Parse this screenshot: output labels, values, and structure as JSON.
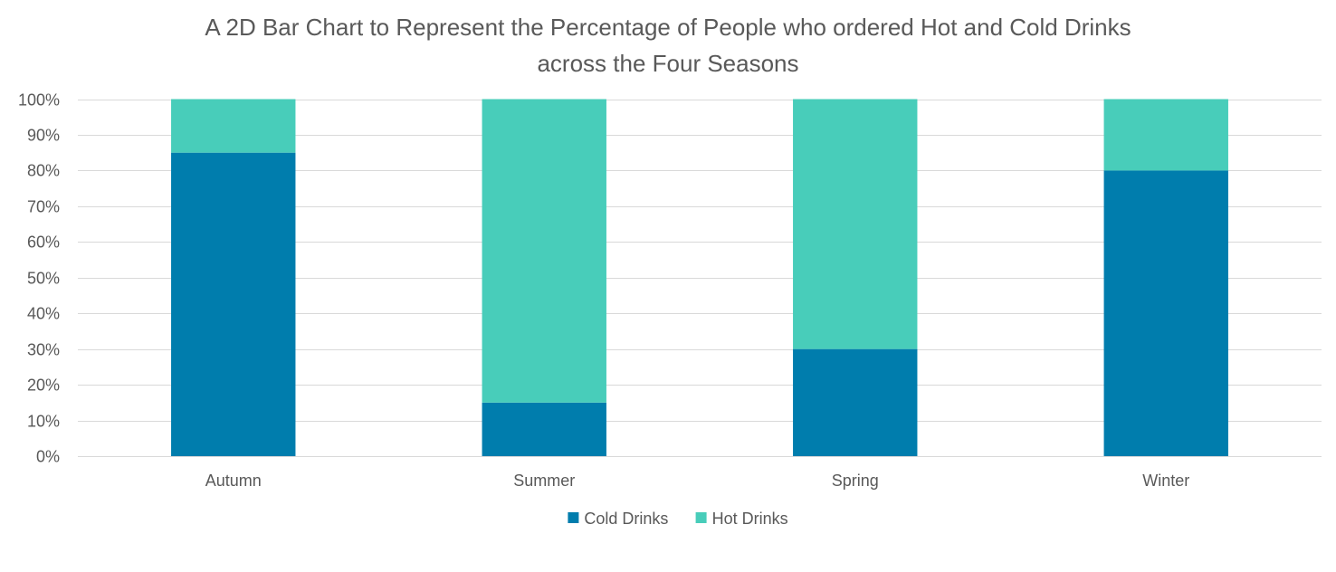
{
  "chart_data": {
    "type": "bar",
    "stacked": true,
    "title_lines": [
      "A 2D Bar Chart to Represent the Percentage of People who ordered Hot and Cold Drinks",
      "across the Four Seasons"
    ],
    "categories": [
      "Autumn",
      "Summer",
      "Spring",
      "Winter"
    ],
    "series": [
      {
        "name": "Cold Drinks",
        "values": [
          85,
          15,
          30,
          80
        ],
        "color": "#007DAD"
      },
      {
        "name": "Hot Drinks",
        "values": [
          15,
          85,
          70,
          20
        ],
        "color": "#48CDBA"
      }
    ],
    "y_ticks": [
      "0%",
      "10%",
      "20%",
      "30%",
      "40%",
      "50%",
      "60%",
      "70%",
      "80%",
      "90%",
      "100%"
    ],
    "ylim": [
      0,
      100
    ],
    "grid": true,
    "legend_position": "bottom",
    "grid_color": "#D9D9D9",
    "text_color": "#595959"
  }
}
